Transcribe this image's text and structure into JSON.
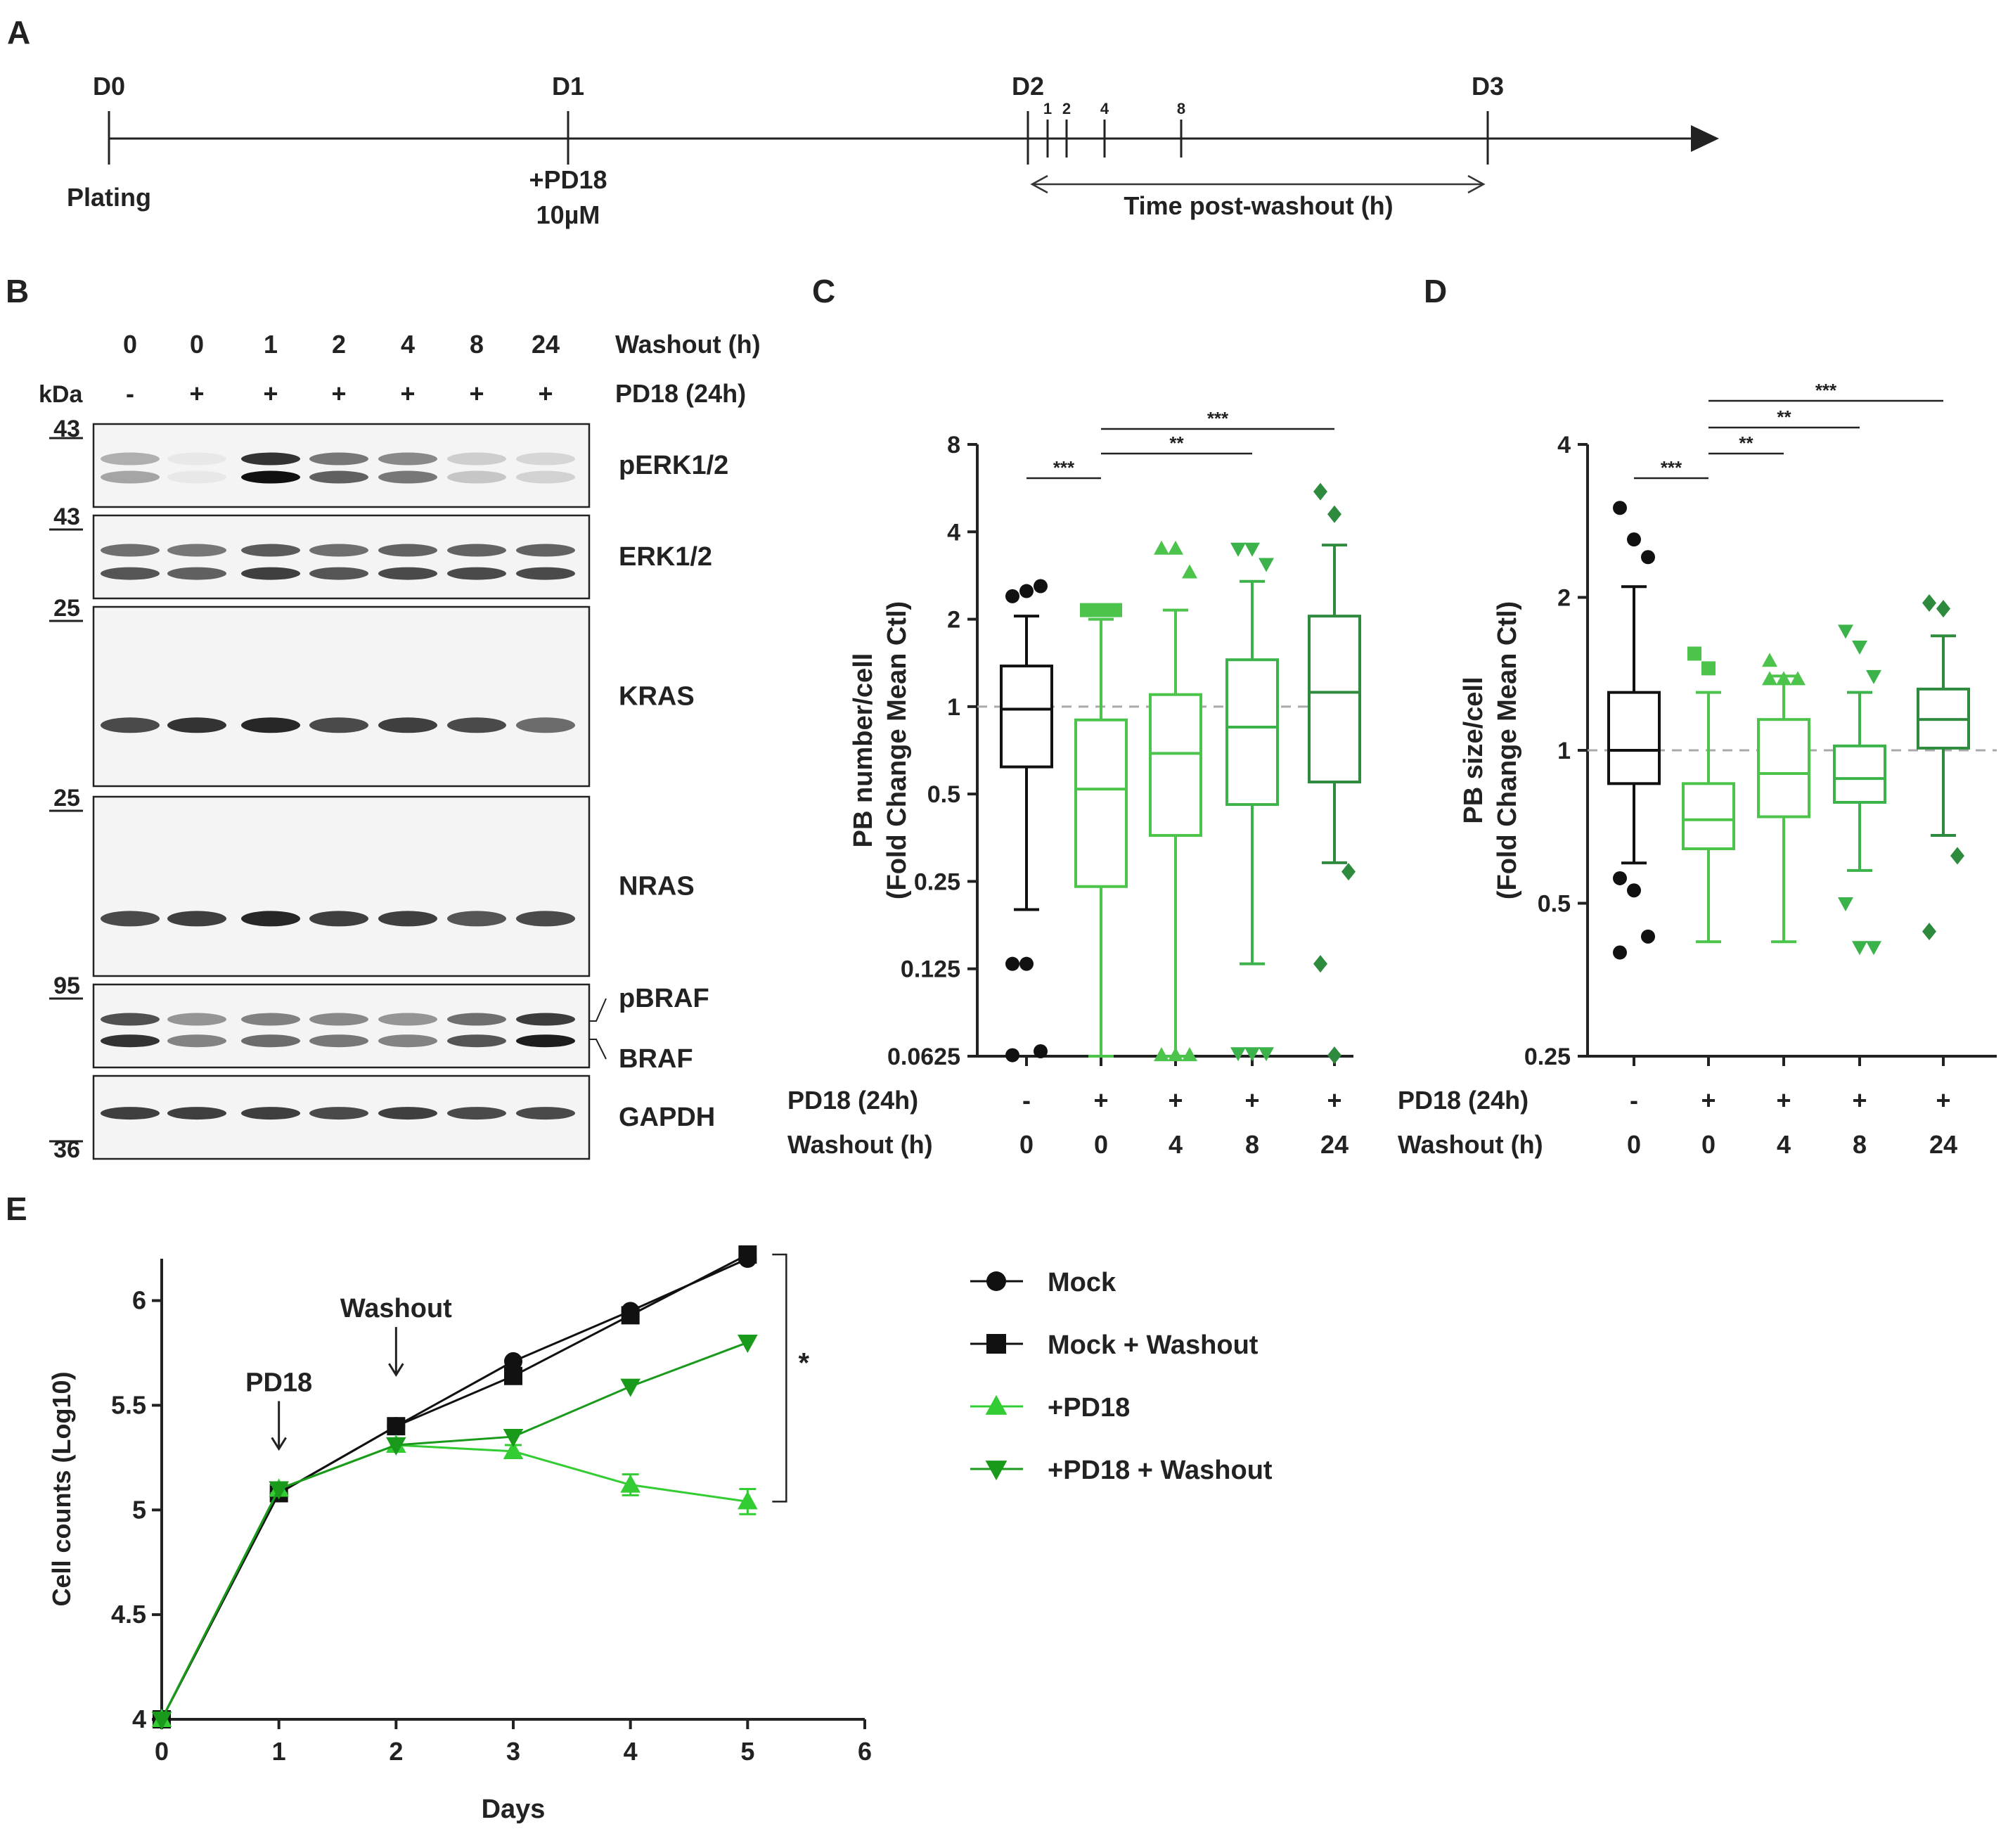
{
  "panel_a": {
    "letter": "A",
    "days": [
      "D0",
      "D1",
      "D2",
      "D3"
    ],
    "post_washout_ticks": [
      "1",
      "2",
      "4",
      "8"
    ],
    "plating_label": "Plating",
    "treatment_label": "+PD18",
    "treatment_dose": "10µM",
    "washout_span_label": "Time post-washout (h)"
  },
  "panel_b": {
    "letter": "B",
    "washout_header": "Washout (h)",
    "pd18_header": "PD18 (24h)",
    "kda_label": "kDa",
    "washout_values": [
      "0",
      "0",
      "1",
      "2",
      "4",
      "8",
      "24"
    ],
    "pd18_values": [
      "-",
      "+",
      "+",
      "+",
      "+",
      "+",
      "+"
    ],
    "blots": [
      {
        "label": "pERK1/2",
        "marker": "43",
        "intensities": [
          0.35,
          0.05,
          1.0,
          0.65,
          0.55,
          0.2,
          0.15
        ],
        "doublet": true
      },
      {
        "label": "ERK1/2",
        "marker": "43",
        "intensities": [
          0.7,
          0.65,
          0.8,
          0.7,
          0.75,
          0.75,
          0.75
        ],
        "doublet": true
      },
      {
        "label": "KRAS",
        "marker": "25",
        "intensities": [
          0.75,
          0.85,
          0.9,
          0.75,
          0.8,
          0.75,
          0.6
        ],
        "doublet": false
      },
      {
        "label": "NRAS",
        "marker": "25",
        "intensities": [
          0.75,
          0.8,
          0.9,
          0.8,
          0.8,
          0.7,
          0.75
        ],
        "doublet": false
      },
      {
        "label": "pBRAF",
        "second_label": "BRAF",
        "marker": "95",
        "intensities": [
          0.85,
          0.5,
          0.6,
          0.55,
          0.5,
          0.7,
          0.95
        ],
        "doublet": true
      },
      {
        "label": "GAPDH",
        "marker": "36",
        "intensities": [
          0.8,
          0.8,
          0.8,
          0.75,
          0.8,
          0.75,
          0.75
        ],
        "doublet": false
      }
    ]
  },
  "chart_data": [
    {
      "panel": "C",
      "type": "box",
      "ylabel": "PB number/cell\n(Fold Change Mean Ctl)",
      "y_scale": "log2",
      "ylim": [
        0.0625,
        8
      ],
      "yticks": [
        "8",
        "4",
        "2",
        "1",
        "0.5",
        "0.25",
        "0.125",
        "0.0625"
      ],
      "reference_line": 1,
      "row_labels": [
        "PD18 (24h)",
        "Washout (h)"
      ],
      "pd18": [
        "-",
        "+",
        "+",
        "+",
        "+"
      ],
      "washout": [
        "0",
        "0",
        "4",
        "8",
        "24"
      ],
      "colors": [
        "#111111",
        "#4cc44c",
        "#4cc44c",
        "#3bb34a",
        "#2e8b3e"
      ],
      "markers": [
        "circle",
        "square",
        "triangle",
        "triangle-down",
        "diamond"
      ],
      "boxes": [
        {
          "whisker_low": 0.2,
          "q1": 0.62,
          "median": 0.98,
          "q3": 1.38,
          "whisker_high": 2.05,
          "outliers": [
            2.4,
            2.5,
            2.6,
            0.13,
            0.13,
            0.065,
            0.063
          ]
        },
        {
          "whisker_low": 0.0625,
          "q1": 0.24,
          "median": 0.52,
          "q3": 0.9,
          "whisker_high": 2.0,
          "outliers": [
            2.15,
            2.15,
            2.15
          ]
        },
        {
          "whisker_low": 0.0625,
          "q1": 0.36,
          "median": 0.69,
          "q3": 1.1,
          "whisker_high": 2.15,
          "outliers": [
            3.5,
            3.5,
            2.9,
            0.063,
            0.063,
            0.063
          ]
        },
        {
          "whisker_low": 0.13,
          "q1": 0.46,
          "median": 0.85,
          "q3": 1.45,
          "whisker_high": 2.7,
          "outliers": [
            3.5,
            3.5,
            3.1,
            0.064,
            0.064,
            0.064
          ]
        },
        {
          "whisker_low": 0.29,
          "q1": 0.55,
          "median": 1.12,
          "q3": 2.05,
          "whisker_high": 3.6,
          "outliers": [
            5.5,
            4.6,
            0.27,
            0.13,
            0.063
          ]
        }
      ],
      "significance": [
        {
          "from": 0,
          "to": 1,
          "label": "***"
        },
        {
          "from": 1,
          "to": 3,
          "label": "**"
        },
        {
          "from": 1,
          "to": 4,
          "label": "***"
        }
      ]
    },
    {
      "panel": "D",
      "type": "box",
      "ylabel": "PB size/cell\n(Fold Change Mean Ctl)",
      "y_scale": "log2",
      "ylim": [
        0.25,
        4
      ],
      "yticks": [
        "4",
        "2",
        "1",
        "0.5",
        "0.25"
      ],
      "reference_line": 1,
      "row_labels": [
        "PD18 (24h)",
        "Washout (h)"
      ],
      "pd18": [
        "-",
        "+",
        "+",
        "+",
        "+"
      ],
      "washout": [
        "0",
        "0",
        "4",
        "8",
        "24"
      ],
      "colors": [
        "#111111",
        "#4cc44c",
        "#4cc44c",
        "#3bb34a",
        "#2e8b3e"
      ],
      "markers": [
        "circle",
        "square",
        "triangle",
        "triangle-down",
        "diamond"
      ],
      "boxes": [
        {
          "whisker_low": 0.6,
          "q1": 0.86,
          "median": 1.0,
          "q3": 1.3,
          "whisker_high": 2.1,
          "outliers": [
            3.0,
            2.6,
            2.4,
            0.56,
            0.53,
            0.43,
            0.4
          ]
        },
        {
          "whisker_low": 0.42,
          "q1": 0.64,
          "median": 0.73,
          "q3": 0.86,
          "whisker_high": 1.3,
          "outliers": [
            1.55,
            1.45
          ]
        },
        {
          "whisker_low": 0.42,
          "q1": 0.74,
          "median": 0.9,
          "q3": 1.15,
          "whisker_high": 1.4,
          "outliers": [
            1.5,
            1.38,
            1.38,
            1.38
          ]
        },
        {
          "whisker_low": 0.58,
          "q1": 0.79,
          "median": 0.88,
          "q3": 1.02,
          "whisker_high": 1.3,
          "outliers": [
            1.72,
            1.6,
            1.4,
            0.5,
            0.41,
            0.41
          ]
        },
        {
          "whisker_low": 0.68,
          "q1": 1.01,
          "median": 1.15,
          "q3": 1.32,
          "whisker_high": 1.68,
          "outliers": [
            1.95,
            1.9,
            0.62,
            0.44
          ]
        }
      ],
      "significance": [
        {
          "from": 0,
          "to": 1,
          "label": "***"
        },
        {
          "from": 1,
          "to": 2,
          "label": "**"
        },
        {
          "from": 1,
          "to": 3,
          "label": "**"
        },
        {
          "from": 1,
          "to": 4,
          "label": "***"
        }
      ]
    },
    {
      "panel": "E",
      "type": "line",
      "xlabel": "Days",
      "ylabel": "Cell counts (Log10)",
      "xlim": [
        0,
        6
      ],
      "ylim": [
        4,
        6.2
      ],
      "xticks": [
        0,
        1,
        2,
        3,
        4,
        5,
        6
      ],
      "yticks": [
        "4",
        "4.5",
        "5",
        "5.5",
        "6"
      ],
      "x": [
        0,
        1,
        2,
        3,
        4,
        5
      ],
      "series": [
        {
          "name": "Mock",
          "color": "#111111",
          "marker": "circle",
          "values": [
            4.0,
            5.08,
            5.4,
            5.71,
            5.95,
            6.2
          ]
        },
        {
          "name": "Mock + Washout",
          "color": "#111111",
          "marker": "square",
          "values": [
            4.0,
            5.08,
            5.4,
            5.64,
            5.93,
            6.22
          ]
        },
        {
          "name": "+PD18",
          "color": "#33cc33",
          "marker": "triangle",
          "values": [
            4.0,
            5.1,
            5.31,
            5.28,
            5.12,
            5.04
          ],
          "errors": [
            0,
            0.02,
            0.03,
            0.03,
            0.05,
            0.06
          ]
        },
        {
          "name": "+PD18 + Washout",
          "color": "#1a9a1a",
          "marker": "triangle-down",
          "values": [
            4.0,
            5.1,
            5.31,
            5.35,
            5.59,
            5.8
          ]
        }
      ],
      "annotations": [
        {
          "text": "PD18",
          "x": 1
        },
        {
          "text": "Washout",
          "x": 2
        }
      ],
      "significance": "*"
    }
  ]
}
